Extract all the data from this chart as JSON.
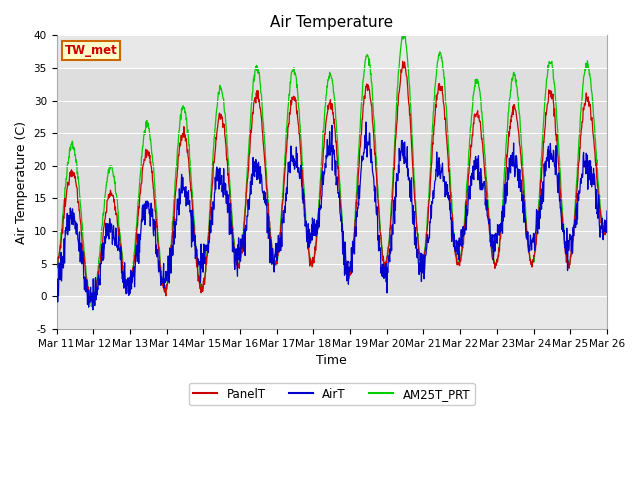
{
  "title": "Air Temperature",
  "ylabel": "Air Temperature (C)",
  "xlabel": "Time",
  "ylim": [
    -5,
    40
  ],
  "annotation": "TW_met",
  "fig_facecolor": "#ffffff",
  "plot_facecolor": "#e8e8e8",
  "band_color": "#d8d8d8",
  "series_colors": {
    "PanelT": "#cc0000",
    "AirT": "#0000cc",
    "AM25T_PRT": "#00cc00"
  },
  "xtick_labels": [
    "Mar 11",
    "Mar 12",
    "Mar 13",
    "Mar 14",
    "Mar 15",
    "Mar 16",
    "Mar 17",
    "Mar 18",
    "Mar 19",
    "Mar 20",
    "Mar 21",
    "Mar 22",
    "Mar 23",
    "Mar 24",
    "Mar 25",
    "Mar 26"
  ],
  "ytick_labels": [
    -5,
    0,
    5,
    10,
    15,
    20,
    25,
    30,
    35,
    40
  ],
  "title_fontsize": 11,
  "axis_label_fontsize": 9,
  "tick_fontsize": 7.5,
  "linewidth": 0.9,
  "figsize": [
    6.4,
    4.8
  ],
  "dpi": 100
}
